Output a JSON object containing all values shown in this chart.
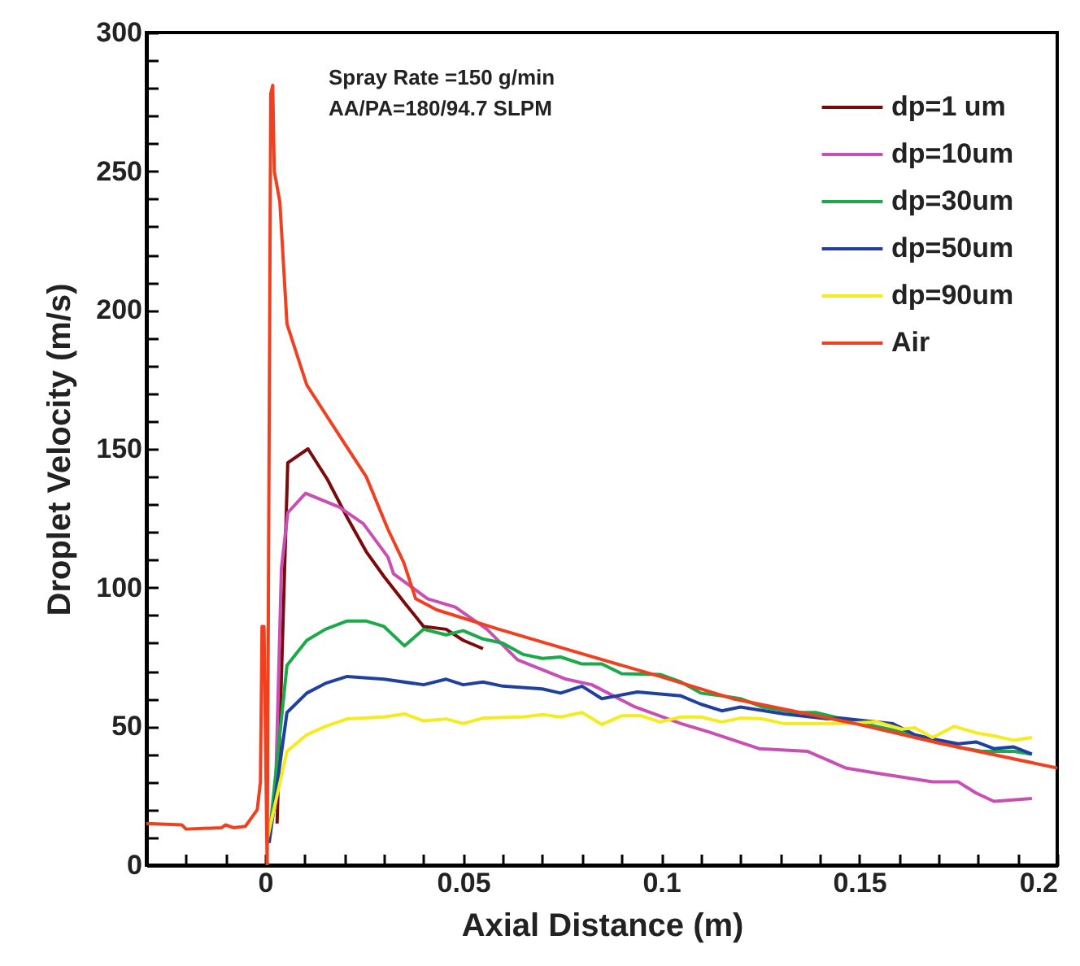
{
  "chart_data": {
    "type": "line",
    "xlabel": "Axial Distance (m)",
    "ylabel": "Droplet Velocity (m/s)",
    "annotations": [
      "Spray Rate =150  g/min",
      "AA/PA=180/94.7   SLPM"
    ],
    "xlim": [
      -0.03,
      0.2
    ],
    "ylim": [
      0,
      300
    ],
    "xticks": [
      {
        "value": -0.03,
        "label": null
      },
      {
        "value": -0.02,
        "label": null
      },
      {
        "value": -0.01,
        "label": null
      },
      0,
      {
        "value": 0.01,
        "label": null
      },
      {
        "value": 0.02,
        "label": null
      },
      {
        "value": 0.03,
        "label": null
      },
      {
        "value": 0.04,
        "label": null
      },
      0.05,
      {
        "value": 0.06,
        "label": null
      },
      {
        "value": 0.07,
        "label": null
      },
      {
        "value": 0.08,
        "label": null
      },
      {
        "value": 0.09,
        "label": null
      },
      0.1,
      {
        "value": 0.11,
        "label": null
      },
      {
        "value": 0.12,
        "label": null
      },
      {
        "value": 0.13,
        "label": null
      },
      {
        "value": 0.14,
        "label": null
      },
      0.15,
      {
        "value": 0.16,
        "label": null
      },
      {
        "value": 0.17,
        "label": null
      },
      {
        "value": 0.18,
        "label": null
      },
      {
        "value": 0.19,
        "label": null
      },
      0.2
    ],
    "yticks": [
      0,
      {
        "value": 10,
        "label": null
      },
      {
        "value": 20,
        "label": null
      },
      {
        "value": 30,
        "label": null
      },
      {
        "value": 40,
        "label": null
      },
      50,
      {
        "value": 60,
        "label": null
      },
      {
        "value": 70,
        "label": null
      },
      {
        "value": 80,
        "label": null
      },
      {
        "value": 90,
        "label": null
      },
      100,
      {
        "value": 110,
        "label": null
      },
      {
        "value": 120,
        "label": null
      },
      {
        "value": 130,
        "label": null
      },
      {
        "value": 140,
        "label": null
      },
      150,
      {
        "value": 160,
        "label": null
      },
      {
        "value": 170,
        "label": null
      },
      {
        "value": 180,
        "label": null
      },
      {
        "value": 190,
        "label": null
      },
      200,
      {
        "value": 210,
        "label": null
      },
      {
        "value": 220,
        "label": null
      },
      {
        "value": 230,
        "label": null
      },
      {
        "value": 240,
        "label": null
      },
      250,
      {
        "value": 260,
        "label": null
      },
      {
        "value": 270,
        "label": null
      },
      {
        "value": 280,
        "label": null
      },
      {
        "value": 290,
        "label": null
      },
      300
    ],
    "grid": false,
    "legend": "top right",
    "line_style": "solid",
    "marker": "none",
    "series": [
      {
        "name": "dp=1 um",
        "color": "#7b0a0a",
        "x": [
          0.003,
          0.0057,
          0.0108,
          0.0157,
          0.0208,
          0.0255,
          0.03,
          0.0355,
          0.04,
          0.0457,
          0.05,
          0.055
        ],
        "values": [
          15,
          145,
          150,
          139,
          125,
          113,
          104,
          94,
          86,
          85,
          81,
          78
        ]
      },
      {
        "name": "dp=10um",
        "color": "#c850b4",
        "x": [
          0.0025,
          0.0041,
          0.0057,
          0.0102,
          0.0187,
          0.0248,
          0.031,
          0.0324,
          0.041,
          0.048,
          0.056,
          0.0637,
          0.076,
          0.0825,
          0.0934,
          0.105,
          0.112,
          0.1247,
          0.137,
          0.1466,
          0.153,
          0.1685,
          0.175,
          0.1795,
          0.184,
          0.1936
        ],
        "values": [
          20,
          107,
          127,
          134,
          129,
          123,
          111,
          105,
          96,
          93,
          85,
          74,
          67,
          65,
          57,
          51,
          48,
          42,
          41,
          35,
          33.5,
          30,
          30,
          26,
          23,
          24
        ]
      },
      {
        "name": "dp=30um",
        "color": "#1aaa4a",
        "x": [
          0.001,
          0.0055,
          0.0105,
          0.0152,
          0.0207,
          0.0254,
          0.03,
          0.0352,
          0.04,
          0.0457,
          0.05,
          0.055,
          0.06,
          0.065,
          0.07,
          0.0746,
          0.08,
          0.085,
          0.09,
          0.0997,
          0.105,
          0.11,
          0.1153,
          0.12,
          0.1255,
          0.134,
          0.139,
          0.145,
          0.1545,
          0.1607,
          0.1685,
          0.175,
          0.181,
          0.189,
          0.1936
        ],
        "values": [
          10,
          72,
          81,
          85,
          88,
          88,
          86,
          79,
          85,
          83,
          84.5,
          81.5,
          80,
          76,
          74.5,
          75,
          72.5,
          72.5,
          69,
          68.7,
          66,
          62,
          61,
          60,
          57,
          55,
          55,
          53,
          50,
          48,
          45.5,
          42.5,
          41,
          41,
          40
        ]
      },
      {
        "name": "dp=50um",
        "color": "#2040a0",
        "x": [
          0.001,
          0.0055,
          0.0105,
          0.0152,
          0.0207,
          0.03,
          0.04,
          0.0457,
          0.05,
          0.055,
          0.06,
          0.07,
          0.0746,
          0.08,
          0.085,
          0.094,
          0.105,
          0.11,
          0.1153,
          0.12,
          0.131,
          0.142,
          0.145,
          0.1545,
          0.1585,
          0.164,
          0.1685,
          0.175,
          0.1795,
          0.184,
          0.189,
          0.1936
        ],
        "values": [
          8,
          55,
          62,
          65.5,
          68,
          67,
          65,
          67,
          65,
          66,
          64.5,
          63.5,
          62,
          64.5,
          60,
          62.4,
          61,
          58,
          55.6,
          57,
          54.5,
          52.7,
          53,
          51.6,
          51,
          47,
          45.5,
          43.7,
          44.4,
          42,
          42.6,
          40
        ]
      },
      {
        "name": "dp=90um",
        "color": "#f5ec1e",
        "x": [
          0.0003,
          0.0055,
          0.0105,
          0.0152,
          0.0207,
          0.03,
          0.0352,
          0.04,
          0.0457,
          0.05,
          0.055,
          0.065,
          0.07,
          0.0746,
          0.08,
          0.085,
          0.09,
          0.095,
          0.0997,
          0.105,
          0.11,
          0.1153,
          0.12,
          0.1255,
          0.131,
          0.145,
          0.1545,
          0.1607,
          0.164,
          0.1685,
          0.174,
          0.1795,
          0.184,
          0.189,
          0.1936
        ],
        "values": [
          8,
          41,
          47,
          50,
          52.7,
          53.4,
          54.5,
          52,
          52.7,
          51,
          53,
          53.4,
          54.3,
          53.4,
          55,
          50.7,
          53.8,
          53.8,
          51.6,
          53.4,
          53.4,
          51.6,
          53,
          52.7,
          51,
          51,
          51.6,
          49,
          49.5,
          46,
          50,
          47.7,
          46.6,
          45,
          46
        ]
      },
      {
        "name": "Air",
        "color": "#f04020",
        "x": [
          -0.03,
          -0.021,
          -0.02,
          -0.011,
          -0.01,
          -0.008,
          -0.005,
          -0.003,
          -0.002,
          -0.0012,
          -0.0008,
          -0.0003,
          0.0005,
          0.0014,
          0.0019,
          0.0023,
          0.0037,
          0.0055,
          0.0105,
          0.02,
          0.0255,
          0.031,
          0.035,
          0.038,
          0.0433,
          0.059,
          0.078,
          0.0997,
          0.118,
          0.149,
          0.17,
          0.2
        ],
        "values": [
          15,
          14.5,
          13,
          13.5,
          14.5,
          13.5,
          14,
          18,
          20,
          30,
          86,
          86,
          0,
          278,
          281,
          250,
          239,
          195,
          173,
          152,
          140,
          121,
          109,
          96,
          92,
          85,
          77,
          68,
          60,
          51,
          44,
          35
        ]
      }
    ]
  }
}
